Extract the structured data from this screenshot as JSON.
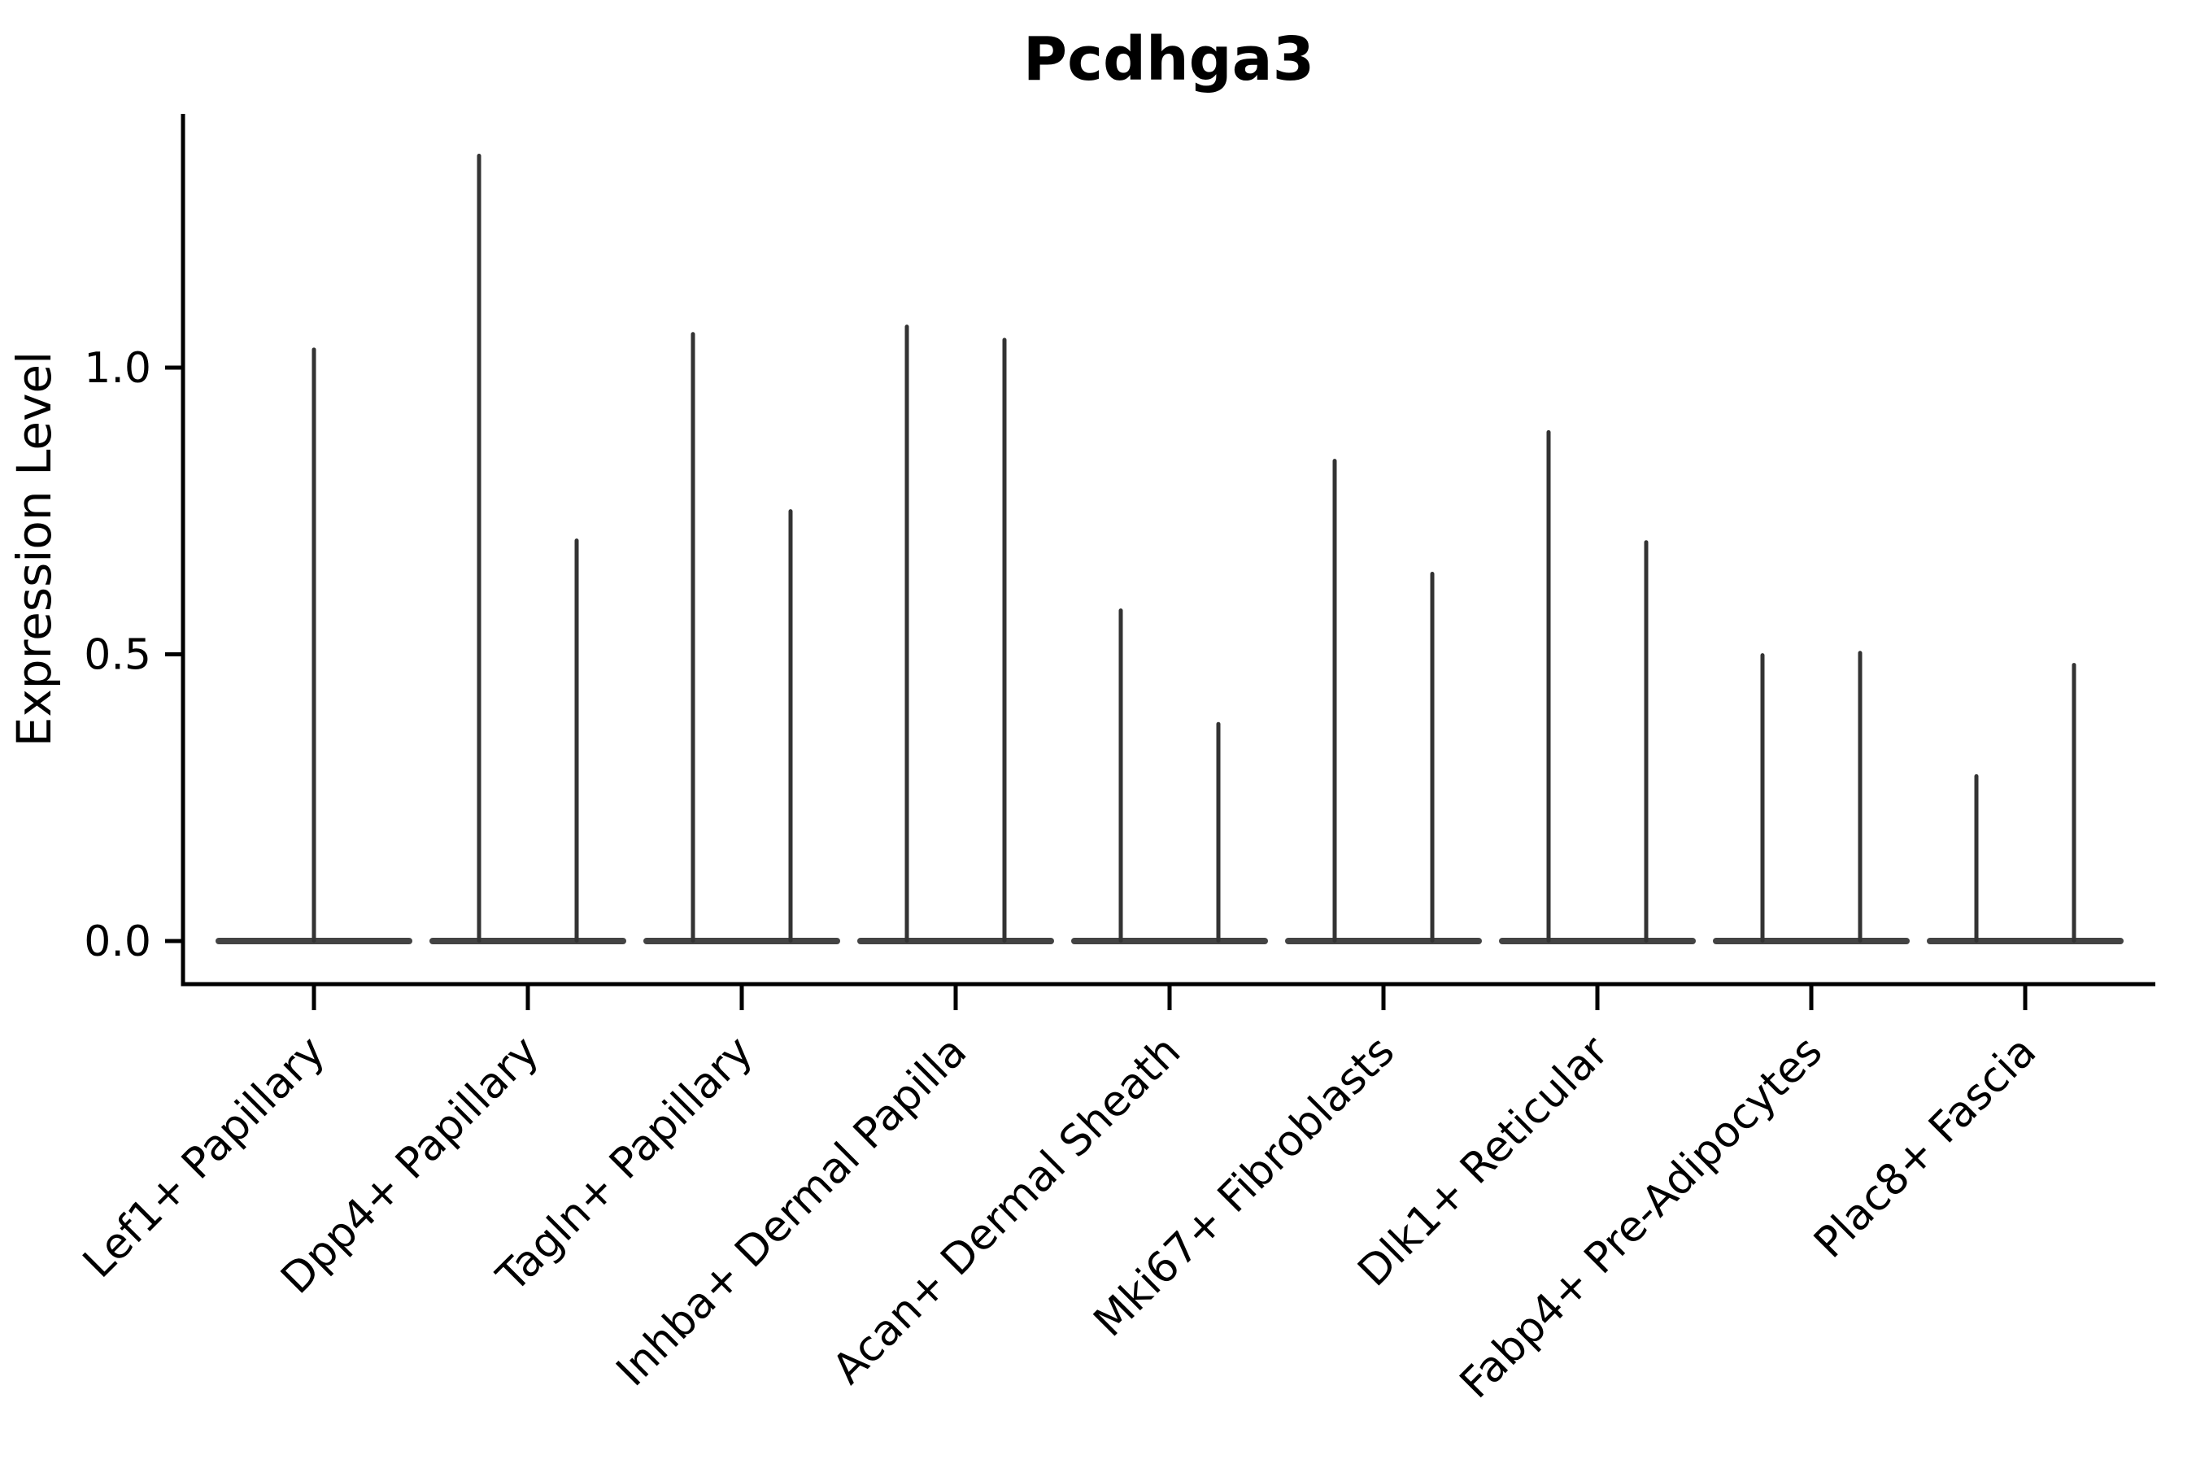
{
  "title": "Pcdhga3",
  "ylabel": "Expression Level",
  "chart_data": {
    "type": "violin",
    "title": "Pcdhga3",
    "xlabel": "",
    "ylabel": "Expression Level",
    "grid": false,
    "legend": "none",
    "ylim": [
      -0.075,
      1.443
    ],
    "ytick_values": [
      0.0,
      0.5,
      1.0
    ],
    "ytick_labels": [
      "0.0",
      "0.5",
      "1.0"
    ],
    "violin_color": "#333333",
    "categories": [
      "Lef1+ Papillary",
      "Dpp4+ Papillary",
      "Tagln+ Papillary",
      "Inhba+ Dermal Papilla",
      "Acan+ Dermal Sheath",
      "Mki67+ Fibroblasts",
      "Dlk1+ Reticular",
      "Fabp4+ Pre-Adipocytes",
      "Plac8+ Fascia"
    ],
    "series": [
      {
        "category": "Lef1+ Papillary",
        "violin_maxima": [
          1.035
        ]
      },
      {
        "category": "Dpp4+ Papillary",
        "violin_maxima": [
          1.373,
          0.702
        ]
      },
      {
        "category": "Tagln+ Papillary",
        "violin_maxima": [
          1.062,
          0.753
        ]
      },
      {
        "category": "Inhba+ Dermal Papilla",
        "violin_maxima": [
          1.075,
          1.052
        ]
      },
      {
        "category": "Acan+ Dermal Sheath",
        "violin_maxima": [
          0.58,
          0.382
        ]
      },
      {
        "category": "Mki67+ Fibroblasts",
        "violin_maxima": [
          0.841,
          0.644
        ]
      },
      {
        "category": "Dlk1+ Reticular",
        "violin_maxima": [
          0.891,
          0.699
        ]
      },
      {
        "category": "Fabp4+ Pre-Adipocytes",
        "violin_maxima": [
          0.502,
          0.506
        ]
      },
      {
        "category": "Plac8+ Fascia",
        "violin_maxima": [
          0.291,
          0.485
        ]
      }
    ],
    "description": "Needle-thin violin plot of gene expression; every distribution is concentrated at 0 with a flat basal body and a single thin spike reaching the maximum expression value."
  }
}
